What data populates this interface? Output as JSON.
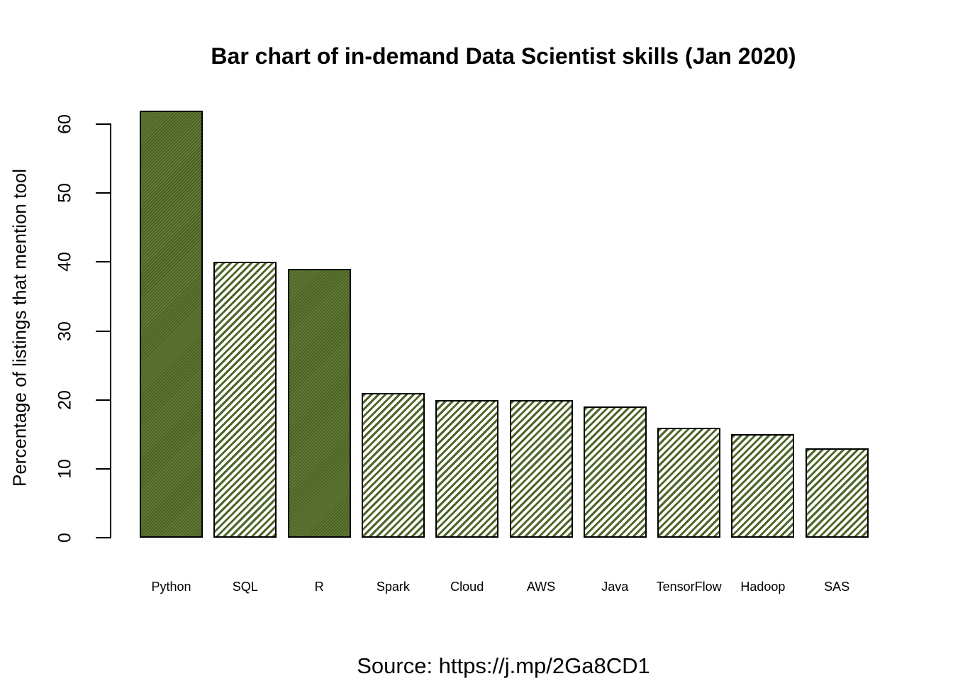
{
  "title": "Bar chart of in-demand Data Scientist skills (Jan 2020)",
  "source_caption": "Source: https://j.mp/2Ga8CD1",
  "chart_data": {
    "type": "bar",
    "title": "Bar chart of in-demand Data Scientist skills (Jan 2020)",
    "categories": [
      "Python",
      "SQL",
      "R",
      "Spark",
      "Cloud",
      "AWS",
      "Java",
      "TensorFlow",
      "Hadoop",
      "SAS"
    ],
    "values": [
      62,
      40,
      39,
      21,
      20,
      20,
      19,
      16,
      15,
      13
    ],
    "xlabel": "",
    "ylabel": "Percentage of listings that mention tool",
    "ylim": [
      0,
      60
    ],
    "yticks": [
      0,
      10,
      20,
      30,
      40,
      50,
      60
    ],
    "grid": false,
    "legend": "none",
    "annotation": "Source: https://j.mp/2Ga8CD1",
    "hatch_direction": "forward-slash",
    "bar_fill_styles": [
      "dense-hatch",
      "light-hatch",
      "dense-hatch",
      "light-hatch",
      "light-hatch",
      "light-hatch",
      "light-hatch",
      "light-hatch",
      "light-hatch",
      "light-hatch"
    ],
    "colors": {
      "hatch_green": "#4e6527",
      "dense_hatch_dark": "#47601f",
      "dense_hatch_light": "#647b39",
      "bar_border": "#000000",
      "background": "#ffffff",
      "text": "#000000"
    }
  }
}
